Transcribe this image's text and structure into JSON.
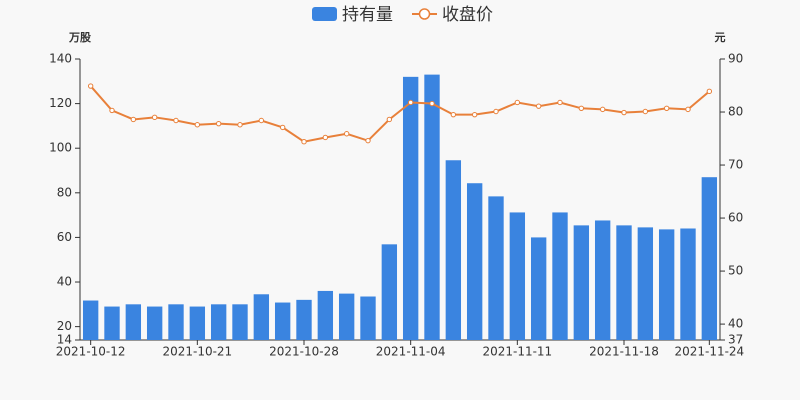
{
  "chart_data": {
    "type": "bar",
    "y_label": "万股",
    "y2_label": "元",
    "categories": [
      "2021-10-12",
      null,
      null,
      null,
      null,
      "2021-10-21",
      null,
      null,
      null,
      null,
      "2021-10-28",
      null,
      null,
      null,
      null,
      "2021-11-04",
      null,
      null,
      null,
      null,
      "2021-11-11",
      null,
      null,
      null,
      null,
      "2021-11-18",
      null,
      null,
      null,
      "2021-11-24"
    ],
    "series": [
      {
        "name": "持有量",
        "type": "bar",
        "color": "#3a84e0",
        "values": [
          31.7,
          29,
          30,
          29,
          30,
          29,
          30,
          30,
          34.5,
          30.8,
          32,
          36,
          34.8,
          33.5,
          56.9,
          132,
          133,
          94.6,
          84.3,
          78.4,
          71.2,
          60,
          71.2,
          65.4,
          67.6,
          65.4,
          64.5,
          63.6,
          64,
          87
        ]
      },
      {
        "name": "收盘价",
        "type": "line",
        "axis": "y2",
        "color": "#e8803a",
        "values": [
          84.9,
          80.3,
          78.6,
          79,
          78.4,
          77.6,
          77.8,
          77.6,
          78.4,
          77.1,
          74.4,
          75.2,
          75.9,
          74.6,
          78.6,
          81.8,
          81.6,
          79.5,
          79.5,
          80.1,
          81.8,
          81.1,
          81.8,
          80.7,
          80.5,
          79.9,
          80.1,
          80.7,
          80.5,
          83.9
        ]
      }
    ],
    "ylim": [
      14,
      140
    ],
    "yticks": [
      14,
      20,
      40,
      60,
      80,
      100,
      120,
      140
    ],
    "y2lim": [
      37,
      90
    ],
    "y2ticks": [
      37,
      40,
      50,
      60,
      70,
      80,
      90
    ],
    "legend": "top"
  }
}
